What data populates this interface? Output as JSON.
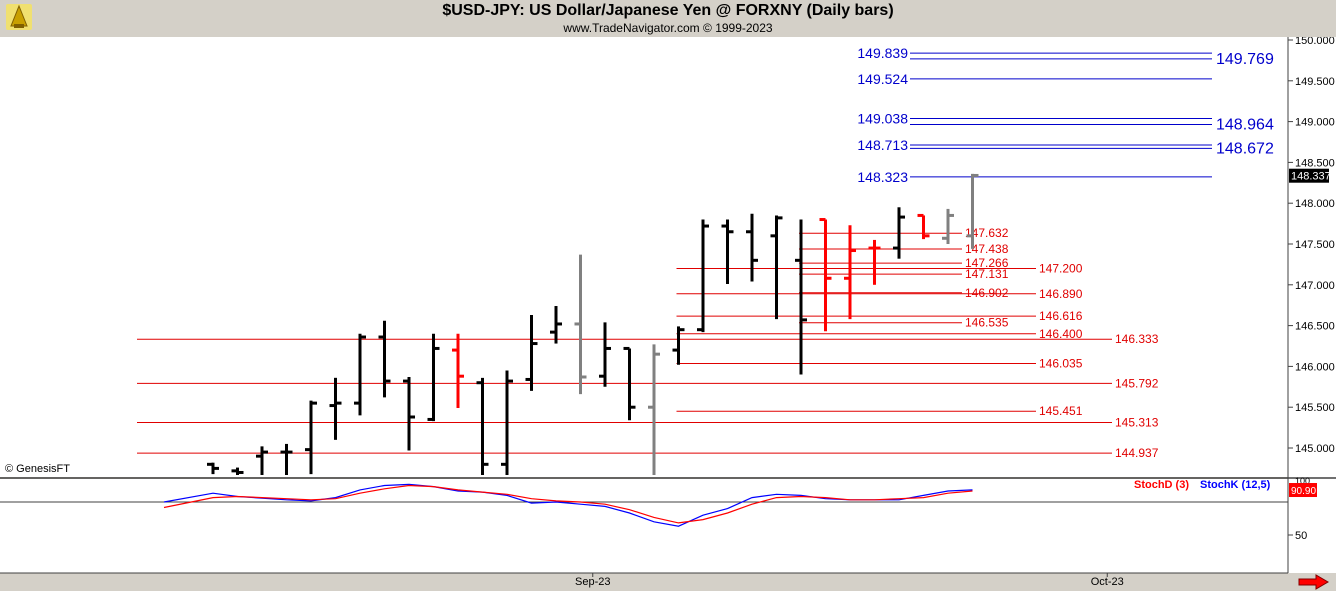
{
  "header": {
    "title": "$USD-JPY:  US Dollar/Japanese Yen @ FORXNY  (Daily bars)",
    "subtitle": "www.TradeNavigator.com © 1999-2023"
  },
  "copyright": "© GenesisFT",
  "colors": {
    "background": "#ffffff",
    "chrome": "#d4d0c8",
    "bar_black": "#000000",
    "bar_red": "#ff0000",
    "bar_gray": "#808080",
    "fib_red": "#e00000",
    "fib_blue": "#0000cc",
    "stochK": "#0000ff",
    "stochD": "#ff0000"
  },
  "chart_data": [
    {
      "type": "ohlc",
      "yaxis": {
        "range": [
          144.6,
          150.1
        ],
        "ticks": [
          "145.000",
          "145.500",
          "146.000",
          "146.500",
          "147.000",
          "147.500",
          "148.000",
          "148.500",
          "149.000",
          "149.500",
          "150.000"
        ],
        "side": "right"
      },
      "xaxis": {
        "labels": [
          {
            "label": "Sep-23",
            "bar": 15.5
          },
          {
            "label": "Oct-23",
            "bar": 36.5
          }
        ]
      },
      "last_price": {
        "label": "148.337",
        "value": 148.337
      },
      "bars": [
        {
          "o": 144.8,
          "h": 144.82,
          "l": 144.68,
          "c": 144.75,
          "col": "black"
        },
        {
          "o": 144.72,
          "h": 144.76,
          "l": 144.6,
          "c": 144.7,
          "col": "black"
        },
        {
          "o": 144.9,
          "h": 145.02,
          "l": 144.65,
          "c": 144.95,
          "col": "black"
        },
        {
          "o": 144.95,
          "h": 145.05,
          "l": 144.6,
          "c": 144.95,
          "col": "black"
        },
        {
          "o": 144.98,
          "h": 145.58,
          "l": 144.68,
          "c": 145.55,
          "col": "black"
        },
        {
          "o": 145.52,
          "h": 145.86,
          "l": 145.1,
          "c": 145.55,
          "col": "black"
        },
        {
          "o": 145.55,
          "h": 146.4,
          "l": 145.4,
          "c": 146.36,
          "col": "black"
        },
        {
          "o": 146.36,
          "h": 146.56,
          "l": 145.62,
          "c": 145.82,
          "col": "black"
        },
        {
          "o": 145.82,
          "h": 145.87,
          "l": 144.97,
          "c": 145.38,
          "col": "black"
        },
        {
          "o": 145.35,
          "h": 146.4,
          "l": 145.33,
          "c": 146.22,
          "col": "black"
        },
        {
          "o": 146.2,
          "h": 146.4,
          "l": 145.49,
          "c": 145.88,
          "col": "red"
        },
        {
          "o": 145.8,
          "h": 145.86,
          "l": 144.6,
          "c": 144.8,
          "col": "black"
        },
        {
          "o": 144.8,
          "h": 145.95,
          "l": 144.6,
          "c": 145.82,
          "col": "black"
        },
        {
          "o": 145.84,
          "h": 146.63,
          "l": 145.7,
          "c": 146.28,
          "col": "black"
        },
        {
          "o": 146.42,
          "h": 146.74,
          "l": 146.28,
          "c": 146.52,
          "col": "black"
        },
        {
          "o": 146.52,
          "h": 147.37,
          "l": 145.66,
          "c": 145.87,
          "col": "gray"
        },
        {
          "o": 145.88,
          "h": 146.54,
          "l": 145.75,
          "c": 146.22,
          "col": "black"
        },
        {
          "o": 146.22,
          "h": 146.22,
          "l": 145.34,
          "c": 145.5,
          "col": "black"
        },
        {
          "o": 145.5,
          "h": 146.27,
          "l": 144.6,
          "c": 146.15,
          "col": "gray"
        },
        {
          "o": 146.2,
          "h": 146.49,
          "l": 146.02,
          "c": 146.45,
          "col": "black"
        },
        {
          "o": 146.45,
          "h": 147.8,
          "l": 146.42,
          "c": 147.72,
          "col": "black"
        },
        {
          "o": 147.72,
          "h": 147.8,
          "l": 147.01,
          "c": 147.65,
          "col": "black"
        },
        {
          "o": 147.65,
          "h": 147.87,
          "l": 147.04,
          "c": 147.3,
          "col": "black"
        },
        {
          "o": 147.6,
          "h": 147.85,
          "l": 146.58,
          "c": 147.82,
          "col": "black"
        },
        {
          "o": 147.3,
          "h": 147.8,
          "l": 145.9,
          "c": 146.57,
          "col": "black"
        },
        {
          "o": 147.8,
          "h": 147.8,
          "l": 146.43,
          "c": 147.08,
          "col": "red"
        },
        {
          "o": 147.08,
          "h": 147.73,
          "l": 146.58,
          "c": 147.42,
          "col": "red"
        },
        {
          "o": 147.45,
          "h": 147.55,
          "l": 147.0,
          "c": 147.45,
          "col": "red"
        },
        {
          "o": 147.45,
          "h": 147.95,
          "l": 147.32,
          "c": 147.83,
          "col": "black"
        },
        {
          "o": 147.85,
          "h": 147.85,
          "l": 147.56,
          "c": 147.6,
          "col": "red"
        },
        {
          "o": 147.57,
          "h": 147.93,
          "l": 147.5,
          "c": 147.85,
          "col": "gray"
        },
        {
          "o": 147.6,
          "h": 148.36,
          "l": 147.44,
          "c": 148.34,
          "col": "gray"
        }
      ],
      "fib_lines": [
        {
          "value": 149.839,
          "label": "149.839",
          "color": "blue",
          "from": 35,
          "label_side": "left"
        },
        {
          "value": 149.769,
          "label": "149.769",
          "color": "blue",
          "from": 35,
          "label_side": "right"
        },
        {
          "value": 149.524,
          "label": "149.524",
          "color": "blue",
          "from": 35,
          "label_side": "left"
        },
        {
          "value": 149.038,
          "label": "149.038",
          "color": "blue",
          "from": 35,
          "label_side": "left"
        },
        {
          "value": 148.964,
          "label": "148.964",
          "color": "blue",
          "from": 35,
          "label_side": "right"
        },
        {
          "value": 148.713,
          "label": "148.713",
          "color": "blue",
          "from": 35,
          "label_side": "left"
        },
        {
          "value": 148.672,
          "label": "148.672",
          "color": "blue",
          "from": 35,
          "label_side": "right"
        },
        {
          "value": 148.323,
          "label": "148.323",
          "color": "blue",
          "from": 35,
          "label_side": "left"
        },
        {
          "value": 147.632,
          "label": "147.632",
          "color": "red",
          "from": 24,
          "to": 32
        },
        {
          "value": 147.438,
          "label": "147.438",
          "color": "red",
          "from": 24,
          "to": 32
        },
        {
          "value": 147.266,
          "label": "147.266",
          "color": "red",
          "from": 24,
          "to": 32
        },
        {
          "value": 147.131,
          "label": "147.131",
          "color": "red",
          "from": 24,
          "to": 32
        },
        {
          "value": 147.2,
          "label": "147.200",
          "color": "red",
          "from": 19,
          "to": 35
        },
        {
          "value": 146.902,
          "label": "146.902",
          "color": "red",
          "from": 24,
          "to": 32
        },
        {
          "value": 146.89,
          "label": "146.890",
          "color": "red",
          "from": 19,
          "to": 35
        },
        {
          "value": 146.616,
          "label": "146.616",
          "color": "red",
          "from": 19,
          "to": 35
        },
        {
          "value": 146.535,
          "label": "146.535",
          "color": "red",
          "from": 24,
          "to": 32
        },
        {
          "value": 146.4,
          "label": "146.400",
          "color": "red",
          "from": 19,
          "to": 35
        },
        {
          "value": 146.333,
          "label": "146.333",
          "color": "red",
          "from": 0,
          "to": 38
        },
        {
          "value": 146.035,
          "label": "146.035",
          "color": "red",
          "from": 19,
          "to": 35
        },
        {
          "value": 145.792,
          "label": "145.792",
          "color": "red",
          "from": 0,
          "to": 38
        },
        {
          "value": 145.451,
          "label": "145.451",
          "color": "red",
          "from": 19,
          "to": 35
        },
        {
          "value": 145.313,
          "label": "145.313",
          "color": "red",
          "from": 0,
          "to": 38
        },
        {
          "value": 144.937,
          "label": "144.937",
          "color": "red",
          "from": 0,
          "to": 38
        }
      ]
    },
    {
      "type": "line",
      "yaxis": {
        "range": [
          0,
          100
        ],
        "ticks": [
          "50"
        ],
        "top_tick": "100",
        "reference": 80
      },
      "legend": [
        {
          "name": "StochD (3)",
          "color": "red"
        },
        {
          "name": "StochK (12,5)",
          "color": "blue"
        }
      ],
      "last_value": {
        "label": "90.90",
        "value": 90.9
      },
      "series": [
        {
          "name": "StochK (12,5)",
          "values": [
            [
              -2,
              80
            ],
            [
              0,
              88
            ],
            [
              1,
              85
            ],
            [
              3,
              82
            ],
            [
              4,
              81
            ],
            [
              5,
              84
            ],
            [
              6,
              91
            ],
            [
              7,
              95
            ],
            [
              8,
              96
            ],
            [
              9,
              94
            ],
            [
              10,
              90
            ],
            [
              11,
              89
            ],
            [
              12,
              86
            ],
            [
              13,
              79
            ],
            [
              14,
              80
            ],
            [
              15,
              78
            ],
            [
              16,
              76
            ],
            [
              17,
              70
            ],
            [
              18,
              62
            ],
            [
              19,
              58
            ],
            [
              20,
              68
            ],
            [
              21,
              74
            ],
            [
              22,
              84
            ],
            [
              23,
              87
            ],
            [
              24,
              86
            ],
            [
              25,
              83
            ],
            [
              26,
              82
            ],
            [
              27,
              82
            ],
            [
              28,
              82
            ],
            [
              29,
              86
            ],
            [
              30,
              90
            ],
            [
              31,
              91
            ]
          ]
        },
        {
          "name": "StochD (3)",
          "values": [
            [
              -2,
              75
            ],
            [
              0,
              84
            ],
            [
              1,
              85
            ],
            [
              3,
              83
            ],
            [
              4,
              82
            ],
            [
              5,
              83
            ],
            [
              6,
              88
            ],
            [
              7,
              92
            ],
            [
              8,
              95
            ],
            [
              9,
              94
            ],
            [
              10,
              91
            ],
            [
              11,
              89
            ],
            [
              12,
              87
            ],
            [
              13,
              83
            ],
            [
              14,
              81
            ],
            [
              15,
              80
            ],
            [
              16,
              78
            ],
            [
              17,
              73
            ],
            [
              18,
              66
            ],
            [
              19,
              61
            ],
            [
              20,
              64
            ],
            [
              21,
              70
            ],
            [
              22,
              78
            ],
            [
              23,
              84
            ],
            [
              24,
              85
            ],
            [
              25,
              84
            ],
            [
              26,
              82
            ],
            [
              27,
              82
            ],
            [
              28,
              83
            ],
            [
              29,
              84
            ],
            [
              30,
              88
            ],
            [
              31,
              90
            ]
          ]
        }
      ]
    }
  ]
}
